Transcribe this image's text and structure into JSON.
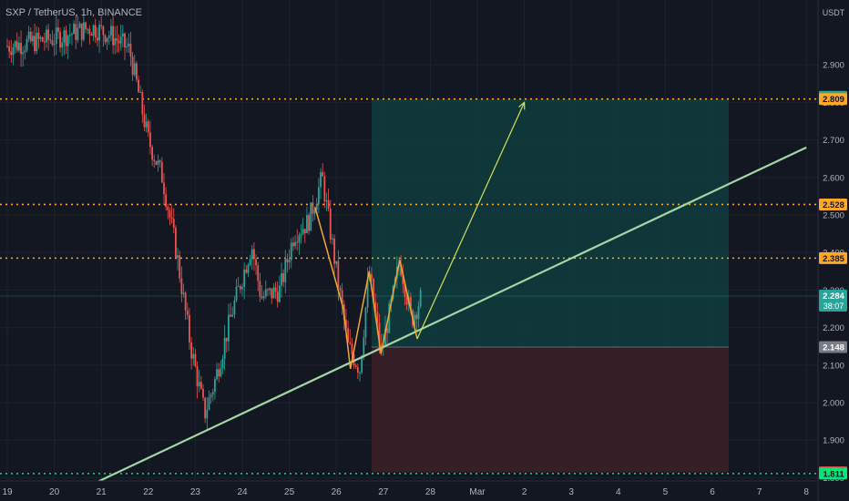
{
  "header": {
    "ticker": "SXP / TetherUS, 1h, BINANCE"
  },
  "price_axis": {
    "currency": "USDT",
    "ticks": [
      "2.900",
      "2.800",
      "2.700",
      "2.600",
      "2.500",
      "2.400",
      "2.300",
      "2.200",
      "2.100",
      "2.000",
      "1.900",
      "1.800"
    ],
    "tick_values": [
      2.9,
      2.8,
      2.7,
      2.6,
      2.5,
      2.4,
      2.3,
      2.2,
      2.1,
      2.0,
      1.9,
      1.8
    ]
  },
  "time_axis": {
    "labels": [
      "19",
      "20",
      "21",
      "22",
      "23",
      "24",
      "25",
      "26",
      "27",
      "28",
      "Mar",
      "2",
      "3",
      "4",
      "5",
      "6",
      "7",
      "8"
    ]
  },
  "price_tags": [
    {
      "label": "2.815",
      "value": 2.815,
      "color": "#26a69a",
      "text_color": "#ffffff"
    },
    {
      "label": "2.809",
      "value": 2.809,
      "color": "#ffa726",
      "text_color": "#131722"
    },
    {
      "label": "2.528",
      "value": 2.528,
      "color": "#ffa726",
      "text_color": "#131722"
    },
    {
      "label": "2.385",
      "value": 2.385,
      "color": "#ffa726",
      "text_color": "#131722"
    },
    {
      "label": "2.284",
      "value": 2.284,
      "color": "#26a69a",
      "text_color": "#ffffff",
      "sub": "38:07"
    },
    {
      "label": "2.148",
      "value": 2.148,
      "color": "#787b86",
      "text_color": "#ffffff"
    },
    {
      "label": "1.814",
      "value": 1.814,
      "color": "#ef5350",
      "text_color": "#ffffff"
    },
    {
      "label": "1.811",
      "value": 1.811,
      "color": "#00e676",
      "text_color": "#131722"
    }
  ],
  "chart_data": {
    "type": "candlestick",
    "symbol": "SXP / TetherUS",
    "interval": "1h",
    "exchange": "BINANCE",
    "x_range": [
      "Feb 19",
      "Mar 8"
    ],
    "y_range": [
      1.75,
      3.0
    ],
    "horizontal_levels": [
      {
        "value": 2.809,
        "style": "dotted",
        "color": "#ffa726"
      },
      {
        "value": 2.528,
        "style": "dotted",
        "color": "#ffa726"
      },
      {
        "value": 2.385,
        "style": "dotted",
        "color": "#ffa726"
      },
      {
        "value": 1.811,
        "style": "dotted",
        "color": "#00e676"
      }
    ],
    "last_price": 2.284,
    "trendline": {
      "color": "#a5d6a7",
      "points": [
        [
          "Feb 20.6",
          1.77
        ],
        [
          "Mar 8",
          2.68
        ]
      ]
    },
    "long_position": {
      "from": "Feb 26.75",
      "to": "Mar 6.35",
      "entry": 2.148,
      "target": 2.809,
      "stop": 1.814,
      "profit_color": "#0f3b3c",
      "loss_color": "#3a1f26"
    },
    "zigzag_pattern": {
      "color": "#f0a830",
      "points": [
        [
          "Feb 25.55",
          2.52
        ],
        [
          "Feb 26.15",
          2.25
        ],
        [
          "Feb 26.3",
          2.09
        ],
        [
          "Feb 26.7",
          2.35
        ],
        [
          "Feb 26.95",
          2.13
        ],
        [
          "Feb 27.35",
          2.38
        ],
        [
          "Feb 27.72",
          2.17
        ]
      ]
    },
    "projection_arrow": {
      "color": "#d4e157",
      "from": [
        "Feb 27.72",
        2.17
      ],
      "to": [
        "Mar 2",
        2.8
      ]
    },
    "candle_color_up": "#26a69a",
    "candle_color_down": "#ef5350"
  }
}
